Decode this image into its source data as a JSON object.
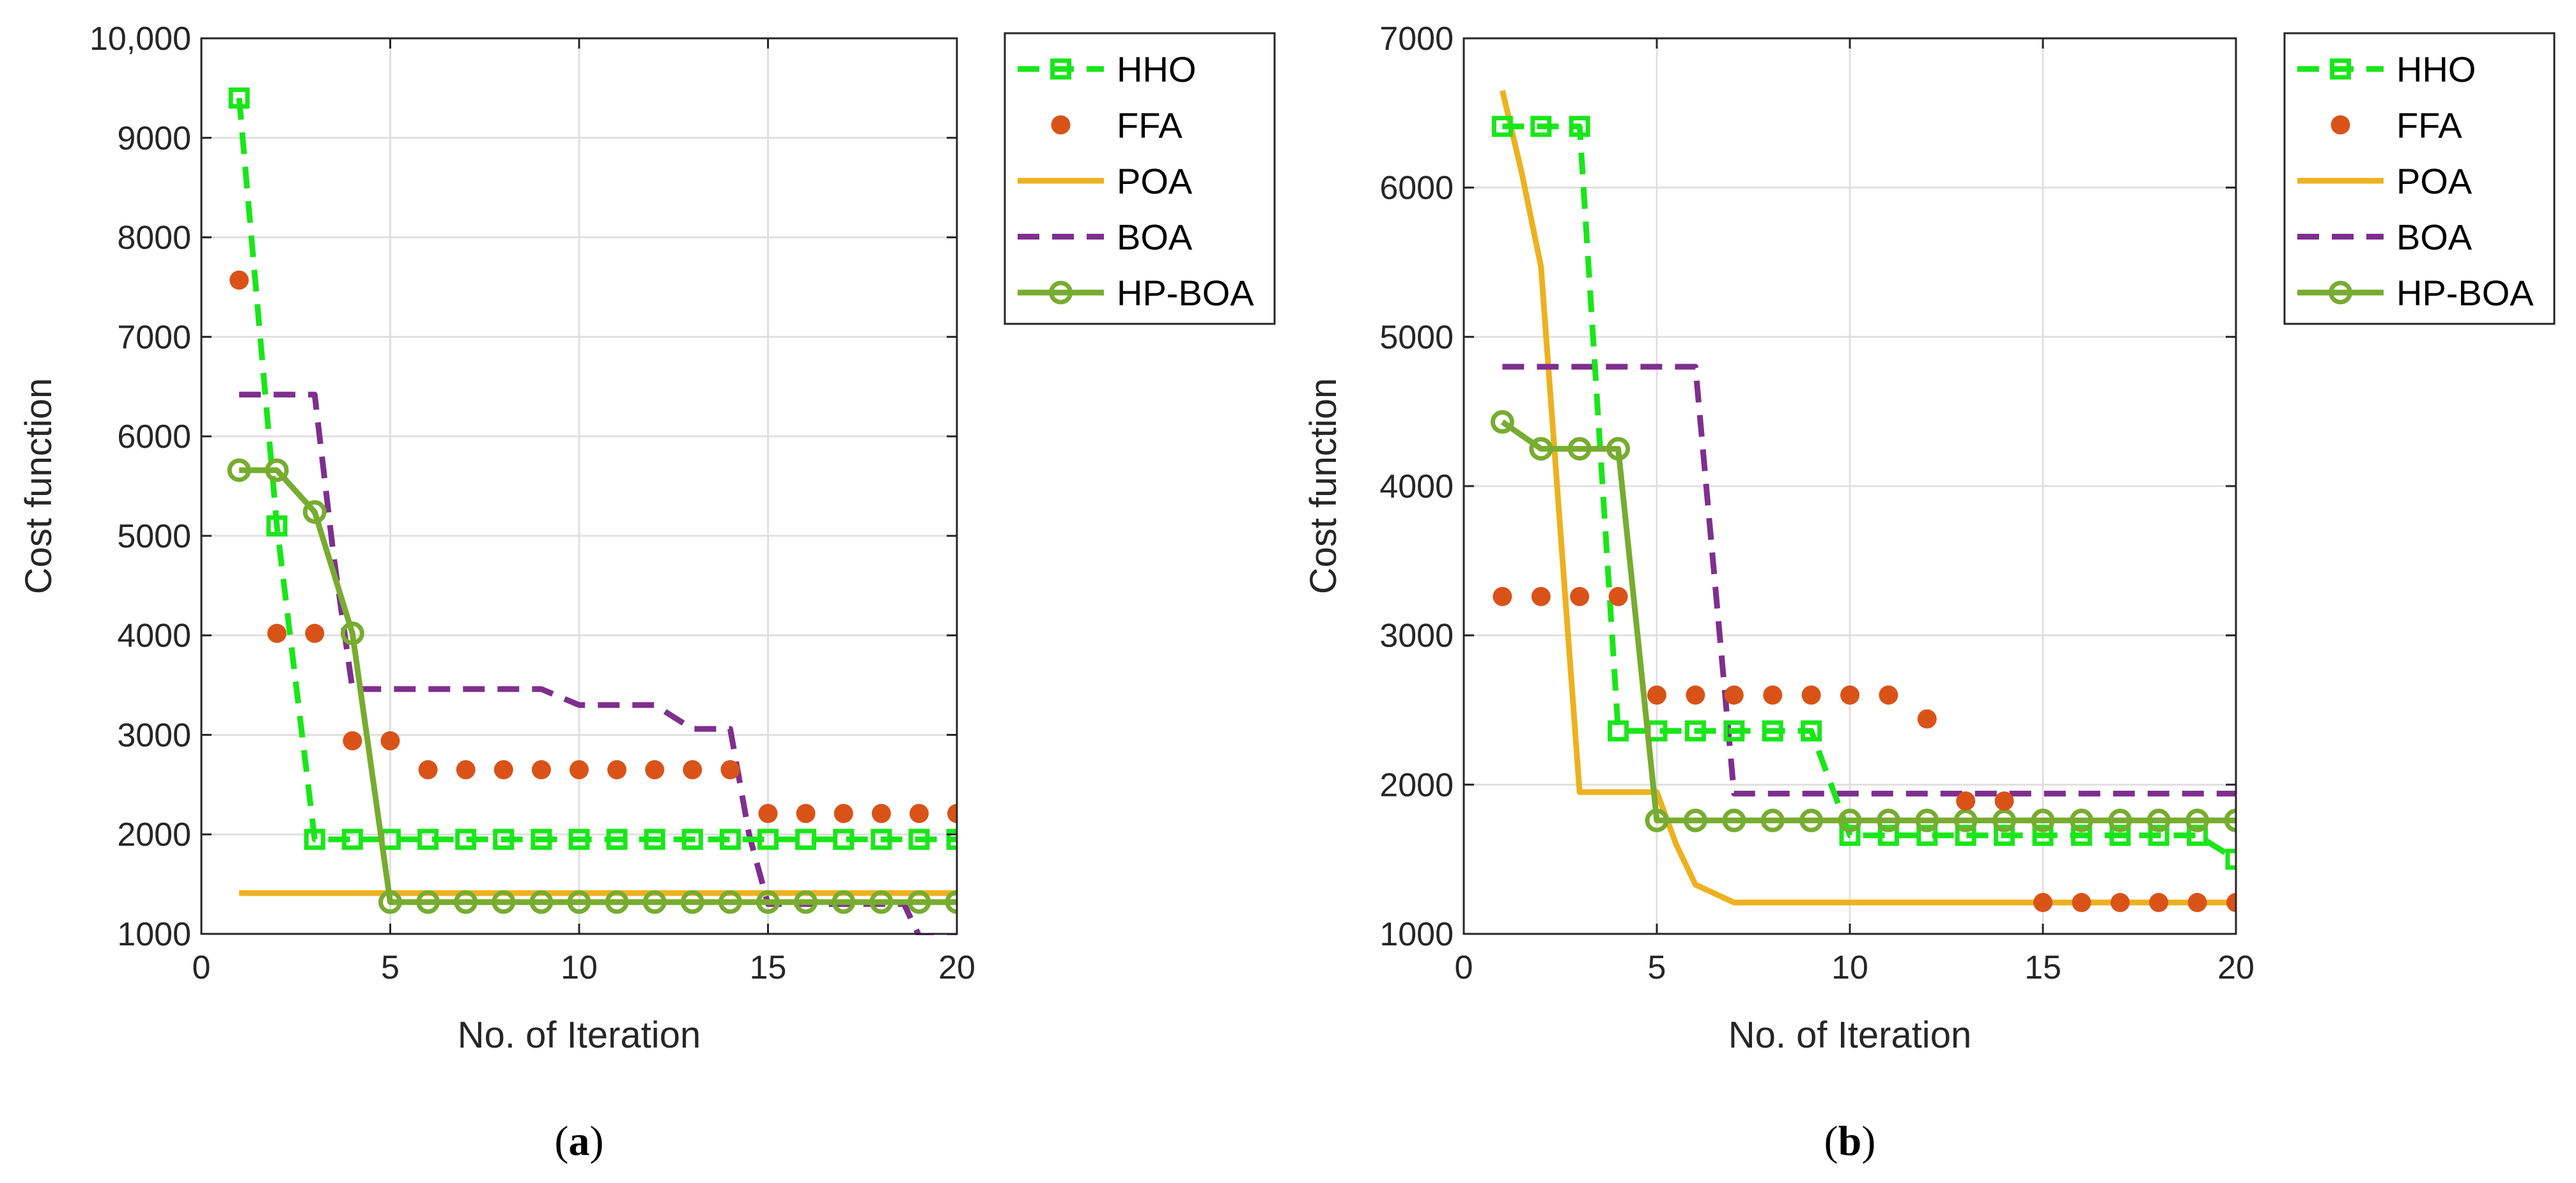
{
  "chart_data": [
    {
      "type": "line",
      "panel_label": "(a)",
      "panel_letter": "a",
      "panel_open": "(",
      "panel_close": ")",
      "xlabel": "No. of Iteration",
      "ylabel": "Cost function",
      "xlim": [
        0,
        20
      ],
      "ylim": [
        1000,
        10000
      ],
      "xticks": [
        0,
        5,
        10,
        15,
        20
      ],
      "xtick_labels": [
        "0",
        "5",
        "10",
        "15",
        "20"
      ],
      "yticks": [
        1000,
        2000,
        3000,
        4000,
        5000,
        6000,
        7000,
        8000,
        9000,
        10000
      ],
      "ytick_labels": [
        "1000",
        "2000",
        "3000",
        "4000",
        "5000",
        "6000",
        "7000",
        "8000",
        "9000",
        "10,000"
      ],
      "grid": true,
      "legend_position": "outside-right-top",
      "series": [
        {
          "name": "HHO",
          "style": "dashed-square",
          "color": "#19E619",
          "x": [
            1,
            2,
            3,
            4,
            5,
            6,
            7,
            8,
            9,
            10,
            11,
            12,
            13,
            14,
            15,
            16,
            17,
            18,
            19,
            20
          ],
          "y": [
            9400,
            5100,
            1950,
            1950,
            1950,
            1950,
            1950,
            1950,
            1950,
            1950,
            1950,
            1950,
            1950,
            1950,
            1950,
            1950,
            1950,
            1950,
            1950,
            1950
          ]
        },
        {
          "name": "FFA",
          "style": "dots",
          "color": "#D95319",
          "x": [
            1,
            2,
            3,
            4,
            5,
            6,
            7,
            8,
            9,
            10,
            11,
            12,
            13,
            14,
            15,
            16,
            17,
            18,
            19,
            20
          ],
          "y": [
            7570,
            4020,
            4020,
            2940,
            2940,
            2650,
            2650,
            2650,
            2650,
            2650,
            2650,
            2650,
            2650,
            2650,
            2210,
            2210,
            2210,
            2210,
            2210,
            2210
          ]
        },
        {
          "name": "POA",
          "style": "solid",
          "color": "#EDB120",
          "x": [
            1,
            20
          ],
          "y": [
            1410,
            1410
          ]
        },
        {
          "name": "BOA",
          "style": "dashed",
          "color": "#7E2F8E",
          "x": [
            1,
            2,
            3,
            3.5,
            4,
            5,
            6,
            7,
            8,
            9,
            10,
            11,
            12,
            13,
            14,
            14.5,
            15,
            16,
            17,
            18,
            18.6,
            19,
            20
          ],
          "y": [
            6420,
            6420,
            6420,
            4800,
            3460,
            3460,
            3460,
            3460,
            3460,
            3460,
            3300,
            3300,
            3300,
            3060,
            3060,
            2000,
            1300,
            1300,
            1300,
            1300,
            1300,
            980,
            980
          ]
        },
        {
          "name": "HP-BOA",
          "style": "solid-circle",
          "color": "#77AC30",
          "x": [
            1,
            2,
            3,
            4,
            5,
            6,
            7,
            8,
            9,
            10,
            11,
            12,
            13,
            14,
            15,
            16,
            17,
            18,
            19,
            20
          ],
          "y": [
            5660,
            5660,
            5240,
            4020,
            1320,
            1320,
            1320,
            1320,
            1320,
            1320,
            1320,
            1320,
            1320,
            1320,
            1320,
            1320,
            1320,
            1320,
            1320,
            1320
          ]
        }
      ]
    },
    {
      "type": "line",
      "panel_label": "(b)",
      "panel_letter": "b",
      "panel_open": "(",
      "panel_close": ")",
      "xlabel": "No. of Iteration",
      "ylabel": "Cost function",
      "xlim": [
        0,
        20
      ],
      "ylim": [
        1000,
        7000
      ],
      "xticks": [
        0,
        5,
        10,
        15,
        20
      ],
      "xtick_labels": [
        "0",
        "5",
        "10",
        "15",
        "20"
      ],
      "yticks": [
        1000,
        2000,
        3000,
        4000,
        5000,
        6000,
        7000
      ],
      "ytick_labels": [
        "1000",
        "2000",
        "3000",
        "4000",
        "5000",
        "6000",
        "7000"
      ],
      "grid": true,
      "legend_position": "outside-right-top",
      "series": [
        {
          "name": "HHO",
          "style": "dashed-square",
          "color": "#19E619",
          "x": [
            1,
            2,
            3,
            4,
            5,
            6,
            7,
            8,
            9,
            10,
            11,
            12,
            13,
            14,
            15,
            16,
            17,
            18,
            19,
            20
          ],
          "y": [
            6410,
            6410,
            6410,
            2360,
            2360,
            2360,
            2360,
            2360,
            2360,
            1660,
            1660,
            1660,
            1660,
            1660,
            1660,
            1660,
            1660,
            1660,
            1660,
            1500
          ]
        },
        {
          "name": "FFA",
          "style": "dots",
          "color": "#D95319",
          "x": [
            1,
            2,
            3,
            4,
            5,
            6,
            7,
            8,
            9,
            10,
            11,
            12,
            13,
            14,
            15,
            16,
            17,
            18,
            19,
            20
          ],
          "y": [
            3260,
            3260,
            3260,
            3260,
            2600,
            2600,
            2600,
            2600,
            2600,
            2600,
            2600,
            2440,
            1890,
            1890,
            1210,
            1210,
            1210,
            1210,
            1210,
            1210
          ]
        },
        {
          "name": "POA",
          "style": "solid",
          "color": "#EDB120",
          "x": [
            1,
            1.5,
            2,
            3,
            4,
            5,
            5.5,
            6,
            7,
            8,
            9,
            10,
            11,
            12,
            13,
            14,
            15,
            16,
            17,
            18,
            19,
            20
          ],
          "y": [
            6650,
            6100,
            5470,
            1950,
            1950,
            1950,
            1600,
            1330,
            1210,
            1210,
            1210,
            1210,
            1210,
            1210,
            1210,
            1210,
            1210,
            1210,
            1210,
            1210,
            1210,
            1210
          ]
        },
        {
          "name": "BOA",
          "style": "dashed",
          "color": "#7E2F8E",
          "x": [
            1,
            2,
            3,
            4,
            5,
            6,
            7,
            8,
            9,
            10,
            11,
            12,
            13,
            14,
            15,
            16,
            17,
            18,
            19,
            20
          ],
          "y": [
            4800,
            4800,
            4800,
            4800,
            4800,
            4800,
            1940,
            1940,
            1940,
            1940,
            1940,
            1940,
            1940,
            1940,
            1940,
            1940,
            1940,
            1940,
            1940,
            1940
          ]
        },
        {
          "name": "HP-BOA",
          "style": "solid-circle",
          "color": "#77AC30",
          "x": [
            1,
            2,
            3,
            4,
            5,
            6,
            7,
            8,
            9,
            10,
            11,
            12,
            13,
            14,
            15,
            16,
            17,
            18,
            19,
            20
          ],
          "y": [
            4430,
            4250,
            4250,
            4250,
            1760,
            1760,
            1760,
            1760,
            1760,
            1760,
            1760,
            1760,
            1760,
            1760,
            1760,
            1760,
            1760,
            1760,
            1760,
            1760
          ]
        }
      ]
    }
  ]
}
